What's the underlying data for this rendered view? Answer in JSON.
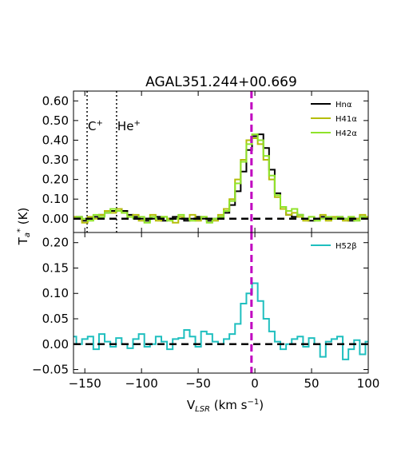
{
  "chart_data": [
    {
      "panel": "top",
      "type": "line",
      "title": "AGAL351.244+00.669",
      "ylabel": "Ta* (K)",
      "xlim": [
        -160,
        100
      ],
      "ylim": [
        -0.07,
        0.65
      ],
      "yticks": [
        "0.00",
        "0.10",
        "0.20",
        "0.30",
        "0.40",
        "0.50",
        "0.60"
      ],
      "ytick_values": [
        0.0,
        0.1,
        0.2,
        0.3,
        0.4,
        0.5,
        0.6
      ],
      "legend": {
        "placement": "top-right",
        "entries": [
          "Hnα",
          "H41α",
          "H42α"
        ]
      },
      "annotations": [
        {
          "text": "C+",
          "x": -148
        },
        {
          "text": "He+",
          "x": -122
        }
      ],
      "reference_lines": {
        "zero_dashed": 0.0,
        "vlsr_magenta": -3
      },
      "series": [
        {
          "name": "Hnα",
          "color": "#000000",
          "x": [
            -160,
            -155,
            -150,
            -145,
            -140,
            -135,
            -130,
            -125,
            -120,
            -115,
            -110,
            -105,
            -100,
            -95,
            -90,
            -85,
            -80,
            -75,
            -70,
            -65,
            -60,
            -55,
            -50,
            -45,
            -40,
            -35,
            -30,
            -25,
            -20,
            -15,
            -10,
            -5,
            0,
            5,
            10,
            15,
            20,
            25,
            30,
            35,
            40,
            45,
            50,
            55,
            60,
            65,
            70,
            75,
            80,
            85,
            90,
            95,
            100
          ],
          "y": [
            0.0,
            0.01,
            -0.01,
            0.0,
            0.01,
            0.02,
            0.03,
            0.04,
            0.05,
            0.04,
            0.02,
            0.01,
            0.0,
            -0.01,
            0.0,
            0.01,
            -0.01,
            0.0,
            0.01,
            0.0,
            -0.01,
            0.0,
            0.01,
            0.0,
            -0.01,
            0.0,
            0.01,
            0.03,
            0.07,
            0.14,
            0.24,
            0.35,
            0.42,
            0.43,
            0.36,
            0.25,
            0.13,
            0.06,
            0.02,
            0.01,
            0.02,
            0.0,
            -0.01,
            0.0,
            0.01,
            0.0,
            0.0,
            0.01,
            0.0,
            -0.01,
            0.0,
            0.01,
            0.0
          ]
        },
        {
          "name": "H41α",
          "color": "#b5bd0a",
          "x": [
            -160,
            -155,
            -150,
            -145,
            -140,
            -135,
            -130,
            -125,
            -120,
            -115,
            -110,
            -105,
            -100,
            -95,
            -90,
            -85,
            -80,
            -75,
            -70,
            -65,
            -60,
            -55,
            -50,
            -45,
            -40,
            -35,
            -30,
            -25,
            -20,
            -15,
            -10,
            -5,
            0,
            5,
            10,
            15,
            20,
            25,
            30,
            35,
            40,
            45,
            50,
            55,
            60,
            65,
            70,
            75,
            80,
            85,
            90,
            95,
            100
          ],
          "y": [
            0.01,
            0.0,
            -0.02,
            0.01,
            0.0,
            0.02,
            0.04,
            0.03,
            0.05,
            0.03,
            0.01,
            0.02,
            -0.01,
            0.0,
            0.02,
            -0.01,
            0.01,
            0.0,
            -0.02,
            0.01,
            0.0,
            0.02,
            -0.01,
            0.01,
            0.0,
            -0.01,
            0.02,
            0.05,
            0.1,
            0.2,
            0.3,
            0.4,
            0.41,
            0.38,
            0.3,
            0.2,
            0.11,
            0.05,
            0.02,
            0.03,
            0.01,
            -0.01,
            0.01,
            0.0,
            0.02,
            -0.01,
            0.01,
            0.0,
            -0.01,
            0.01,
            0.0,
            0.02,
            0.01
          ]
        },
        {
          "name": "H42α",
          "color": "#8fe32a",
          "x": [
            -160,
            -155,
            -150,
            -145,
            -140,
            -135,
            -130,
            -125,
            -120,
            -115,
            -110,
            -105,
            -100,
            -95,
            -90,
            -85,
            -80,
            -75,
            -70,
            -65,
            -60,
            -55,
            -50,
            -45,
            -40,
            -35,
            -30,
            -25,
            -20,
            -15,
            -10,
            -5,
            0,
            5,
            10,
            15,
            20,
            25,
            30,
            35,
            40,
            45,
            50,
            55,
            60,
            65,
            70,
            75,
            80,
            85,
            90,
            95,
            100
          ],
          "y": [
            0.0,
            0.01,
            0.0,
            -0.01,
            0.02,
            0.01,
            0.03,
            0.05,
            0.04,
            0.03,
            0.01,
            0.0,
            0.01,
            -0.02,
            0.01,
            0.0,
            0.01,
            -0.01,
            0.0,
            0.02,
            0.0,
            -0.01,
            0.0,
            0.01,
            -0.02,
            0.0,
            0.01,
            0.04,
            0.09,
            0.18,
            0.29,
            0.38,
            0.43,
            0.4,
            0.32,
            0.22,
            0.12,
            0.06,
            0.04,
            0.05,
            0.02,
            0.0,
            0.01,
            -0.01,
            0.0,
            0.01,
            0.0,
            0.01,
            0.0,
            0.01,
            -0.01,
            0.01,
            0.0
          ]
        }
      ]
    },
    {
      "panel": "bottom",
      "type": "line",
      "xlabel": "VLSR (km s⁻¹)",
      "xlim": [
        -160,
        100
      ],
      "ylim": [
        -0.057,
        0.22
      ],
      "xticks": [
        "−150",
        "−100",
        "−50",
        "0",
        "50",
        "100"
      ],
      "xtick_values": [
        -150,
        -100,
        -50,
        0,
        50,
        100
      ],
      "yticks": [
        "−0.05",
        "0.00",
        "0.05",
        "0.10",
        "0.15",
        "0.20"
      ],
      "ytick_values": [
        -0.05,
        0.0,
        0.05,
        0.1,
        0.15,
        0.2
      ],
      "legend": {
        "placement": "top-right",
        "entries": [
          "H52β"
        ]
      },
      "reference_lines": {
        "zero_dashed": 0.0,
        "vlsr_magenta": -3
      },
      "series": [
        {
          "name": "H52β",
          "color": "#1fbfbf",
          "x": [
            -160,
            -155,
            -150,
            -145,
            -140,
            -135,
            -130,
            -125,
            -120,
            -115,
            -110,
            -105,
            -100,
            -95,
            -90,
            -85,
            -80,
            -75,
            -70,
            -65,
            -60,
            -55,
            -50,
            -45,
            -40,
            -35,
            -30,
            -25,
            -20,
            -15,
            -10,
            -5,
            0,
            5,
            10,
            15,
            20,
            25,
            30,
            35,
            40,
            45,
            50,
            55,
            60,
            65,
            70,
            75,
            80,
            85,
            90,
            95,
            100
          ],
          "y": [
            0.015,
            0.0,
            0.01,
            0.015,
            -0.01,
            0.02,
            0.005,
            -0.005,
            0.012,
            0.0,
            -0.008,
            0.01,
            0.02,
            -0.005,
            0.0,
            0.015,
            0.005,
            -0.01,
            0.01,
            0.012,
            0.028,
            0.015,
            -0.005,
            0.025,
            0.02,
            0.005,
            0.0,
            0.01,
            0.02,
            0.04,
            0.08,
            0.1,
            0.12,
            0.085,
            0.05,
            0.025,
            0.005,
            -0.01,
            0.0,
            0.01,
            0.015,
            -0.005,
            0.012,
            0.0,
            -0.025,
            0.005,
            0.01,
            0.015,
            -0.03,
            -0.01,
            0.008,
            -0.02,
            0.005
          ]
        }
      ]
    }
  ]
}
